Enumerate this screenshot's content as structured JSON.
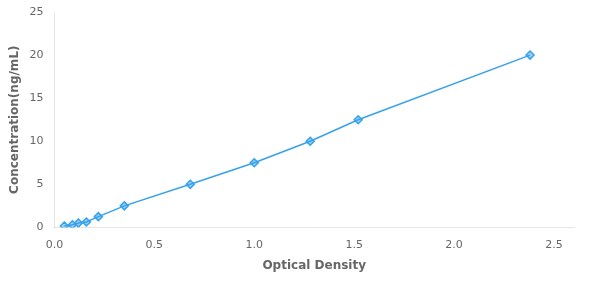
{
  "chart_data": {
    "type": "line",
    "x_label": "Optical Density",
    "y_label": "Concentration(ng/mL)",
    "x": [
      0.05,
      0.09,
      0.12,
      0.16,
      0.22,
      0.35,
      0.68,
      1.0,
      1.28,
      1.52,
      2.38
    ],
    "values": [
      0.156,
      0.312,
      0.5,
      0.625,
      1.25,
      2.5,
      5.0,
      7.5,
      10.0,
      12.5,
      20.0
    ],
    "marker": "diamond",
    "xlim": [
      0,
      2.6
    ],
    "ylim": [
      0,
      25
    ],
    "xticks": [
      {
        "value": 0,
        "label": "0.0"
      },
      {
        "value": 0.5,
        "label": "0.5"
      },
      {
        "value": 1,
        "label": "1.0"
      },
      {
        "value": 1.5,
        "label": "1.5"
      },
      {
        "value": 2,
        "label": "2.0"
      },
      {
        "value": 2.5,
        "label": "2.5"
      }
    ],
    "yticks": [
      0,
      5,
      10,
      15,
      20,
      25
    ],
    "grid": false
  }
}
